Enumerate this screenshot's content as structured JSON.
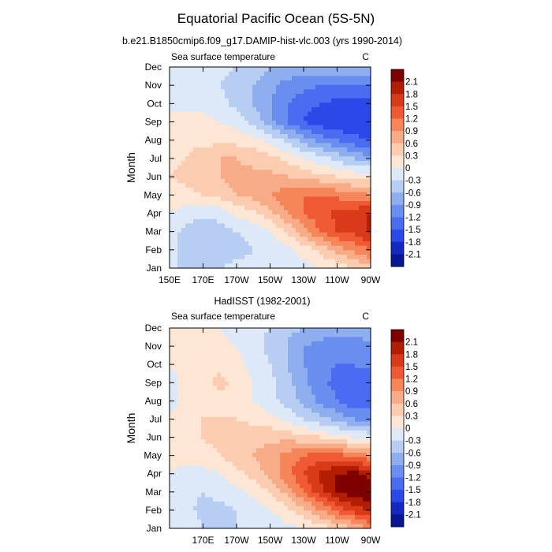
{
  "title": "Equatorial Pacific Ocean (5S-5N)",
  "colorbar": {
    "labels": [
      "2.1",
      "1.8",
      "1.5",
      "1.2",
      "0.9",
      "0.6",
      "0.3",
      "0",
      "-0.3",
      "-0.6",
      "-0.9",
      "-1.2",
      "-1.5",
      "-1.8",
      "-2.1"
    ],
    "colors": [
      "#7f0000",
      "#b31d00",
      "#d93a1a",
      "#ef5a35",
      "#f5865a",
      "#f8ab87",
      "#fbccb0",
      "#fde6d4",
      "#dde9f8",
      "#b7cdf2",
      "#8faeee",
      "#6a8ef0",
      "#4a6cf0",
      "#2a49e8",
      "#1628c2",
      "#081696"
    ]
  },
  "chart_data": [
    {
      "type": "heatmap",
      "title": "b.e21.B1850cmip6.f09_g17.DAMIP-hist-vlc.003 (yrs 1990-2014)",
      "left_label": "Sea surface temperature",
      "right_label": "C",
      "ylabel": "Month",
      "xlabel": "",
      "x": [
        150,
        160,
        170,
        180,
        190,
        200,
        210,
        220,
        230,
        240,
        250,
        260,
        270
      ],
      "x_ticks": [
        150,
        170,
        190,
        210,
        230,
        250,
        270
      ],
      "x_tick_labels": [
        "150E",
        "170E",
        "170W",
        "150W",
        "130W",
        "110W",
        "90W"
      ],
      "y_tick_labels": [
        "Jan",
        "Feb",
        "Mar",
        "Apr",
        "May",
        "Jun",
        "Jul",
        "Aug",
        "Sep",
        "Oct",
        "Nov",
        "Dec"
      ],
      "values": [
        [
          -0.2,
          -0.4,
          -0.4,
          -0.3,
          -0.2,
          -0.2,
          -0.2,
          -0.1,
          -0.1,
          0.0,
          0.1,
          0.3,
          0.5
        ],
        [
          -0.2,
          -0.4,
          -0.4,
          -0.6,
          -0.4,
          -0.3,
          -0.2,
          -0.1,
          0.1,
          0.4,
          0.7,
          1.0,
          1.2
        ],
        [
          -0.2,
          -0.4,
          -0.6,
          -0.4,
          -0.3,
          -0.2,
          0.0,
          0.3,
          0.8,
          1.2,
          1.5,
          1.6,
          1.9
        ],
        [
          0.0,
          -0.1,
          -0.2,
          -0.2,
          0.1,
          0.2,
          0.5,
          0.9,
          1.2,
          1.4,
          1.6,
          1.7,
          1.8
        ],
        [
          0.1,
          0.2,
          0.3,
          0.4,
          0.6,
          0.7,
          0.9,
          1.1,
          1.2,
          1.2,
          1.1,
          1.0,
          0.9
        ],
        [
          0.3,
          0.4,
          0.5,
          0.6,
          0.7,
          0.7,
          0.7,
          0.6,
          0.5,
          0.4,
          0.3,
          0.2,
          0.2
        ],
        [
          0.2,
          0.3,
          0.5,
          0.6,
          0.6,
          0.5,
          0.4,
          0.2,
          0.0,
          -0.2,
          -0.4,
          -0.6,
          -0.8
        ],
        [
          0.1,
          0.2,
          0.2,
          0.2,
          0.2,
          0.1,
          -0.1,
          -0.4,
          -0.7,
          -1.0,
          -1.2,
          -1.4,
          -1.5
        ],
        [
          0.1,
          0.1,
          0.1,
          0.0,
          -0.1,
          -0.4,
          -0.8,
          -1.2,
          -1.5,
          -1.7,
          -1.8,
          -1.8,
          -1.7
        ],
        [
          -0.1,
          -0.1,
          -0.1,
          -0.2,
          -0.4,
          -0.6,
          -0.9,
          -1.2,
          -1.4,
          -1.5,
          -1.6,
          -1.6,
          -1.6
        ],
        [
          -0.1,
          -0.2,
          -0.2,
          -0.3,
          -0.4,
          -0.6,
          -0.8,
          -1.0,
          -1.1,
          -1.2,
          -1.2,
          -1.2,
          -1.2
        ],
        [
          0.0,
          -0.1,
          -0.2,
          -0.2,
          -0.3,
          -0.4,
          -0.6,
          -0.7,
          -0.7,
          -0.7,
          -0.6,
          -0.6,
          -0.6
        ]
      ],
      "levels": [
        -2.1,
        -1.8,
        -1.5,
        -1.2,
        -0.9,
        -0.6,
        -0.3,
        0,
        0.3,
        0.6,
        0.9,
        1.2,
        1.5,
        1.8,
        2.1
      ]
    },
    {
      "type": "heatmap",
      "title": "HadISST (1982-2001)",
      "left_label": "Sea surface temperature",
      "right_label": "C",
      "ylabel": "Month",
      "xlabel": "",
      "x": [
        150,
        160,
        170,
        180,
        190,
        200,
        210,
        220,
        230,
        240,
        250,
        260,
        270
      ],
      "x_ticks": [
        170,
        190,
        210,
        230,
        250,
        270
      ],
      "x_tick_labels": [
        "170E",
        "170W",
        "150W",
        "130W",
        "110W",
        "90W"
      ],
      "y_tick_labels": [
        "Jan",
        "Feb",
        "Mar",
        "Apr",
        "May",
        "Jun",
        "Jul",
        "Aug",
        "Sep",
        "Oct",
        "Nov",
        "Dec"
      ],
      "values": [
        [
          -0.1,
          -0.1,
          -0.3,
          -0.3,
          -0.3,
          -0.2,
          -0.2,
          -0.1,
          0.0,
          0.1,
          0.3,
          0.6,
          0.9
        ],
        [
          -0.1,
          -0.2,
          -0.4,
          -0.4,
          -0.3,
          -0.2,
          0.0,
          0.2,
          0.5,
          0.9,
          1.3,
          1.6,
          1.9
        ],
        [
          -0.1,
          -0.2,
          -0.3,
          -0.2,
          -0.1,
          0.1,
          0.3,
          0.7,
          1.2,
          1.7,
          2.1,
          2.3,
          2.4
        ],
        [
          0.0,
          -0.1,
          -0.1,
          0.0,
          0.2,
          0.4,
          0.7,
          1.1,
          1.5,
          1.9,
          2.1,
          2.2,
          2.0
        ],
        [
          0.1,
          0.1,
          0.2,
          0.3,
          0.5,
          0.6,
          0.8,
          1.0,
          1.2,
          1.3,
          1.3,
          1.1,
          0.9
        ],
        [
          0.1,
          0.2,
          0.3,
          0.4,
          0.5,
          0.5,
          0.5,
          0.5,
          0.4,
          0.3,
          0.1,
          0.0,
          -0.1
        ],
        [
          0.0,
          0.2,
          0.3,
          0.3,
          0.3,
          0.2,
          0.1,
          -0.1,
          -0.3,
          -0.5,
          -0.7,
          -0.9,
          -1.0
        ],
        [
          -0.1,
          0.1,
          0.2,
          0.2,
          0.1,
          0.0,
          -0.2,
          -0.4,
          -0.7,
          -1.0,
          -1.2,
          -1.4,
          -1.4
        ],
        [
          -0.1,
          0.1,
          0.2,
          0.4,
          0.2,
          0.0,
          -0.2,
          -0.5,
          -0.8,
          -1.1,
          -1.3,
          -1.4,
          -1.4
        ],
        [
          0.0,
          0.1,
          0.2,
          0.2,
          0.1,
          -0.1,
          -0.3,
          -0.6,
          -0.9,
          -1.1,
          -1.2,
          -1.2,
          -1.1
        ],
        [
          0.0,
          0.1,
          0.1,
          0.1,
          0.0,
          -0.2,
          -0.4,
          -0.6,
          -0.9,
          -1.0,
          -1.1,
          -1.1,
          -1.0
        ],
        [
          0.1,
          0.1,
          0.1,
          0.0,
          -0.1,
          -0.2,
          -0.3,
          -0.5,
          -0.6,
          -0.7,
          -0.7,
          -0.7,
          -0.6
        ]
      ],
      "levels": [
        -2.1,
        -1.8,
        -1.5,
        -1.2,
        -0.9,
        -0.6,
        -0.3,
        0,
        0.3,
        0.6,
        0.9,
        1.2,
        1.5,
        1.8,
        2.1
      ]
    }
  ]
}
